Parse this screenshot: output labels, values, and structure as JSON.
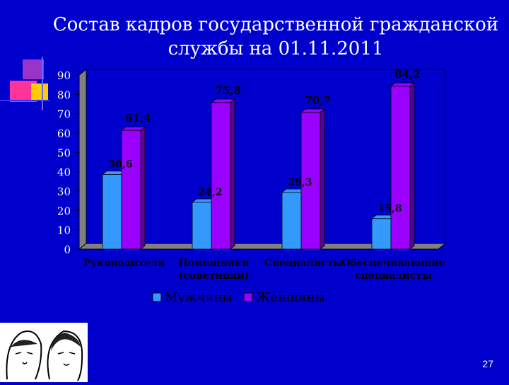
{
  "title_line1": "Состав кадров государственной гражданской",
  "title_line2": "службы на 01.11.2011",
  "page_number": "27",
  "colors": {
    "background": "#0000cc",
    "men": "#3399ff",
    "women": "#9900ff",
    "text_labels": "#000000"
  },
  "chart_data": {
    "type": "bar",
    "categories": [
      [
        "Руководители"
      ],
      [
        "Помощники",
        "(советники)"
      ],
      [
        "Специалисты"
      ],
      [
        "Обеспечивающие",
        "специалисты"
      ]
    ],
    "series": [
      {
        "name": "Мужчины",
        "values": [
          38.6,
          24.2,
          29.3,
          15.8
        ],
        "labels": [
          "38,6",
          "24,2",
          "29,3",
          "15,8"
        ]
      },
      {
        "name": "Женщины",
        "values": [
          61.4,
          75.8,
          70.7,
          84.2
        ],
        "labels": [
          "61,4",
          "75,8",
          "70,7",
          "84,2"
        ]
      }
    ],
    "ylim": [
      0,
      90
    ],
    "yticks": [
      0,
      10,
      20,
      30,
      40,
      50,
      60,
      70,
      80,
      90
    ],
    "legend": "bottom",
    "grid": false
  }
}
